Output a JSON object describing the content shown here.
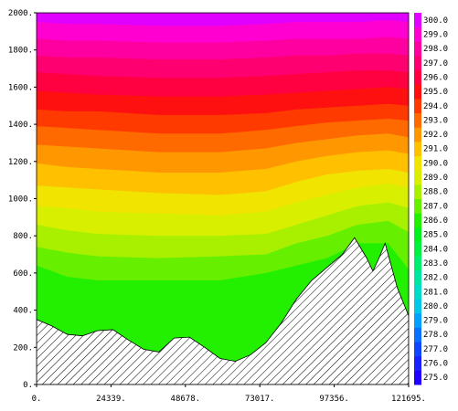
{
  "chart_data": {
    "type": "heatmap",
    "subtype": "filled-contour-cross-section",
    "title": "",
    "xlabel": "",
    "ylabel": "",
    "xlim": [
      0,
      121695
    ],
    "ylim": [
      0,
      2000
    ],
    "x_ticks": [
      0,
      24339,
      48678,
      73017,
      97356,
      121695
    ],
    "x_tick_labels": [
      "0.",
      "24339.",
      "48678.",
      "73017.",
      "97356.",
      "121695."
    ],
    "y_ticks": [
      0,
      200,
      400,
      600,
      800,
      1000,
      1200,
      1400,
      1600,
      1800,
      2000
    ],
    "y_tick_labels": [
      "0.",
      "200.",
      "400.",
      "600.",
      "800.",
      "1000.",
      "1200.",
      "1400.",
      "1600.",
      "1800.",
      "2000."
    ],
    "colorbar": {
      "levels": [
        275.0,
        276.0,
        277.0,
        278.0,
        279.0,
        280.0,
        281.0,
        282.0,
        283.0,
        284.0,
        285.0,
        286.0,
        287.0,
        288.0,
        289.0,
        290.0,
        291.0,
        292.0,
        293.0,
        294.0,
        295.0,
        296.0,
        297.0,
        298.0,
        299.0,
        300.0
      ],
      "labels": [
        "275.0",
        "276.0",
        "277.0",
        "278.0",
        "279.0",
        "280.0",
        "281.0",
        "282.0",
        "283.0",
        "284.0",
        "285.0",
        "286.0",
        "287.0",
        "288.0",
        "289.0",
        "290.0",
        "291.0",
        "292.0",
        "293.0",
        "294.0",
        "295.0",
        "296.0",
        "297.0",
        "298.0",
        "299.0",
        "300.0"
      ],
      "colors": [
        "#2200ff",
        "#1a20ff",
        "#0f45ff",
        "#0a70ff",
        "#00a0ff",
        "#00c8e6",
        "#00dcc8",
        "#00e6a0",
        "#00ee70",
        "#00f040",
        "#00f020",
        "#22f000",
        "#66f000",
        "#a8f000",
        "#d8f000",
        "#f0e400",
        "#ffc000",
        "#ff9800",
        "#ff6a00",
        "#ff3a00",
        "#ff1010",
        "#ff0040",
        "#ff0070",
        "#ff00a0",
        "#ff00d0",
        "#e000ff"
      ]
    },
    "terrain": {
      "x": [
        0,
        5000,
        10000,
        15000,
        20000,
        25000,
        30000,
        35000,
        40000,
        45000,
        50000,
        55000,
        60000,
        65000,
        70000,
        75000,
        80000,
        85000,
        90000,
        95000,
        100000,
        104000,
        108000,
        110000,
        112000,
        114000,
        116000,
        118000,
        121695
      ],
      "y": [
        350,
        315,
        270,
        262,
        290,
        295,
        240,
        190,
        175,
        250,
        255,
        200,
        140,
        125,
        160,
        225,
        330,
        460,
        560,
        630,
        700,
        790,
        680,
        610,
        680,
        760,
        640,
        520,
        370
      ]
    },
    "isolines": [
      {
        "level": 286,
        "x": [
          0,
          10000,
          20000,
          40000,
          60000,
          75000,
          85000,
          95000,
          105000,
          115000,
          121695
        ],
        "y": [
          640,
          580,
          560,
          560,
          560,
          600,
          640,
          680,
          760,
          760,
          620
        ]
      },
      {
        "level": 287,
        "x": [
          0,
          10000,
          20000,
          40000,
          60000,
          75000,
          85000,
          95000,
          105000,
          115000,
          121695
        ],
        "y": [
          740,
          710,
          690,
          680,
          690,
          700,
          760,
          800,
          860,
          880,
          820
        ]
      },
      {
        "level": 288,
        "x": [
          0,
          10000,
          20000,
          40000,
          60000,
          75000,
          85000,
          95000,
          105000,
          115000,
          121695
        ],
        "y": [
          860,
          830,
          810,
          800,
          800,
          810,
          860,
          910,
          960,
          980,
          950
        ]
      },
      {
        "level": 289,
        "x": [
          0,
          10000,
          20000,
          40000,
          60000,
          75000,
          85000,
          95000,
          105000,
          115000,
          121695
        ],
        "y": [
          960,
          950,
          930,
          920,
          910,
          930,
          980,
          1020,
          1060,
          1080,
          1060
        ]
      },
      {
        "level": 290,
        "x": [
          0,
          10000,
          20000,
          40000,
          60000,
          75000,
          85000,
          95000,
          105000,
          115000,
          121695
        ],
        "y": [
          1070,
          1060,
          1050,
          1030,
          1020,
          1040,
          1090,
          1130,
          1150,
          1160,
          1140
        ]
      },
      {
        "level": 291,
        "x": [
          0,
          10000,
          20000,
          40000,
          60000,
          75000,
          85000,
          95000,
          105000,
          115000,
          121695
        ],
        "y": [
          1190,
          1170,
          1160,
          1140,
          1140,
          1160,
          1200,
          1230,
          1250,
          1260,
          1240
        ]
      },
      {
        "level": 292,
        "x": [
          0,
          10000,
          20000,
          40000,
          60000,
          75000,
          85000,
          95000,
          105000,
          115000,
          121695
        ],
        "y": [
          1290,
          1280,
          1270,
          1250,
          1250,
          1270,
          1300,
          1320,
          1340,
          1350,
          1330
        ]
      },
      {
        "level": 293,
        "x": [
          0,
          10000,
          20000,
          40000,
          60000,
          75000,
          85000,
          95000,
          105000,
          115000,
          121695
        ],
        "y": [
          1390,
          1380,
          1370,
          1350,
          1350,
          1370,
          1390,
          1410,
          1420,
          1430,
          1420
        ]
      },
      {
        "level": 294,
        "x": [
          0,
          10000,
          20000,
          40000,
          60000,
          75000,
          85000,
          95000,
          105000,
          115000,
          121695
        ],
        "y": [
          1480,
          1470,
          1470,
          1450,
          1450,
          1460,
          1480,
          1490,
          1500,
          1510,
          1500
        ]
      },
      {
        "level": 295,
        "x": [
          0,
          10000,
          20000,
          40000,
          60000,
          75000,
          85000,
          95000,
          105000,
          115000,
          121695
        ],
        "y": [
          1580,
          1570,
          1560,
          1550,
          1550,
          1560,
          1570,
          1580,
          1590,
          1600,
          1590
        ]
      },
      {
        "level": 296,
        "x": [
          0,
          10000,
          20000,
          40000,
          60000,
          75000,
          85000,
          95000,
          105000,
          115000,
          121695
        ],
        "y": [
          1680,
          1670,
          1660,
          1650,
          1650,
          1660,
          1670,
          1680,
          1690,
          1690,
          1680
        ]
      },
      {
        "level": 297,
        "x": [
          0,
          10000,
          20000,
          40000,
          60000,
          75000,
          85000,
          95000,
          105000,
          115000,
          121695
        ],
        "y": [
          1770,
          1760,
          1760,
          1750,
          1750,
          1760,
          1770,
          1770,
          1780,
          1780,
          1770
        ]
      },
      {
        "level": 298,
        "x": [
          0,
          10000,
          20000,
          40000,
          60000,
          75000,
          85000,
          95000,
          105000,
          115000,
          121695
        ],
        "y": [
          1860,
          1850,
          1850,
          1840,
          1840,
          1850,
          1860,
          1860,
          1860,
          1870,
          1860
        ]
      },
      {
        "level": 299,
        "x": [
          0,
          10000,
          20000,
          40000,
          60000,
          75000,
          85000,
          95000,
          105000,
          115000,
          121695
        ],
        "y": [
          1950,
          1940,
          1940,
          1930,
          1930,
          1940,
          1950,
          1950,
          1950,
          1960,
          1950
        ]
      }
    ],
    "grid": false,
    "legend": "colorbar-right"
  }
}
